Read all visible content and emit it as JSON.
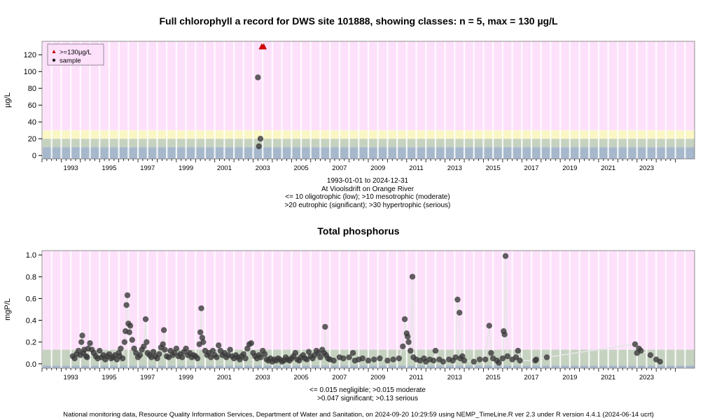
{
  "chart_data": [
    {
      "type": "scatter",
      "title": "Full chlorophyll a record for DWS site 101888, showing classes: n = 5, max = 130 µg/L",
      "ylabel": "µg/L",
      "xlabel": "",
      "xlim": [
        1992.0,
        2026.0
      ],
      "ylim": [
        -4,
        136
      ],
      "yticks": [
        "0",
        "20",
        "40",
        "60",
        "80",
        "100",
        "120"
      ],
      "xticks": [
        "1993",
        "1995",
        "1997",
        "1999",
        "2001",
        "2003",
        "2005",
        "2007",
        "2009",
        "2011",
        "2013",
        "2015",
        "2017",
        "2019",
        "2021",
        "2023"
      ],
      "notes": [
        "1993-01-01 to 2024-12-31",
        "At Vioolsdrift on Orange River",
        "<= 10 oligotrophic (low); >10 mesotrophic (moderate)",
        ">20 eutrophic (significant); >30 hypertrophic (serious)"
      ],
      "classes": [
        {
          "from": -4,
          "to": 10,
          "color": "#a7b8cc"
        },
        {
          "from": 10,
          "to": 20,
          "color": "#c5d2c0"
        },
        {
          "from": 20,
          "to": 30,
          "color": "#fbf7c5"
        },
        {
          "from": 30,
          "to": 136,
          "color": "#fde1fb"
        }
      ],
      "legend": {
        "position": "top-left",
        "items": [
          {
            "label": ">=130µg/L",
            "marker": "triangle",
            "color": "#cc0000"
          },
          {
            "label": "sample",
            "marker": "dot",
            "color": "#222222"
          }
        ]
      },
      "series": [
        {
          "name": "sample",
          "points": [
            [
              2003.25,
              93
            ],
            [
              2003.3,
              11
            ],
            [
              2003.38,
              20
            ]
          ]
        },
        {
          "name": ">=130µg/L",
          "points": [
            [
              2003.45,
              130
            ],
            [
              2003.55,
              130
            ]
          ]
        }
      ]
    },
    {
      "type": "scatter",
      "title": "Total phosphorus",
      "ylabel": "mgP/L",
      "xlabel": "",
      "xlim": [
        1992.0,
        2026.0
      ],
      "ylim": [
        -0.04,
        1.04
      ],
      "yticks": [
        "0.0",
        "0.2",
        "0.4",
        "0.6",
        "0.8",
        "1.0"
      ],
      "xticks": [
        "1993",
        "1995",
        "1997",
        "1999",
        "2001",
        "2003",
        "2005",
        "2007",
        "2009",
        "2011",
        "2013",
        "2015",
        "2017",
        "2019",
        "2021",
        "2023"
      ],
      "notes": [
        "<= 0.015 negligible; >0.015 moderate",
        ">0.047 significant; >0.13 serious"
      ],
      "classes": [
        {
          "from": -0.04,
          "to": -0.015,
          "color": "#a7b8cc"
        },
        {
          "from": -0.015,
          "to": 0.13,
          "color": "#c5d2c0"
        },
        {
          "from": 0.13,
          "to": 1.04,
          "color": "#fde1fb"
        }
      ],
      "series": [
        {
          "name": "sample",
          "points": [
            [
              1993.6,
              0.07
            ],
            [
              1993.7,
              0.05
            ],
            [
              1993.8,
              0.09
            ],
            [
              1993.9,
              0.12
            ],
            [
              1994.0,
              0.08
            ],
            [
              1994.05,
              0.2
            ],
            [
              1994.1,
              0.26
            ],
            [
              1994.15,
              0.1
            ],
            [
              1994.2,
              0.13
            ],
            [
              1994.3,
              0.07
            ],
            [
              1994.35,
              0.06
            ],
            [
              1994.4,
              0.14
            ],
            [
              1994.5,
              0.19
            ],
            [
              1994.6,
              0.13
            ],
            [
              1994.7,
              0.1
            ],
            [
              1994.8,
              0.07
            ],
            [
              1994.9,
              0.05
            ],
            [
              1995.0,
              0.12
            ],
            [
              1995.1,
              0.06
            ],
            [
              1995.2,
              0.08
            ],
            [
              1995.3,
              0.04
            ],
            [
              1995.4,
              0.07
            ],
            [
              1995.5,
              0.09
            ],
            [
              1995.6,
              0.05
            ],
            [
              1995.7,
              0.06
            ],
            [
              1995.8,
              0.08
            ],
            [
              1995.9,
              0.04
            ],
            [
              1996.0,
              0.1
            ],
            [
              1996.05,
              0.07
            ],
            [
              1996.1,
              0.14
            ],
            [
              1996.2,
              0.05
            ],
            [
              1996.3,
              0.2
            ],
            [
              1996.35,
              0.3
            ],
            [
              1996.4,
              0.54
            ],
            [
              1996.45,
              0.63
            ],
            [
              1996.5,
              0.37
            ],
            [
              1996.55,
              0.29
            ],
            [
              1996.6,
              0.35
            ],
            [
              1996.7,
              0.22
            ],
            [
              1996.8,
              0.14
            ],
            [
              1996.9,
              0.1
            ],
            [
              1997.0,
              0.06
            ],
            [
              1997.1,
              0.08
            ],
            [
              1997.2,
              0.13
            ],
            [
              1997.3,
              0.16
            ],
            [
              1997.4,
              0.41
            ],
            [
              1997.45,
              0.2
            ],
            [
              1997.5,
              0.1
            ],
            [
              1997.6,
              0.08
            ],
            [
              1997.7,
              0.06
            ],
            [
              1997.8,
              0.11
            ],
            [
              1997.9,
              0.07
            ],
            [
              1998.0,
              0.05
            ],
            [
              1998.1,
              0.09
            ],
            [
              1998.2,
              0.15
            ],
            [
              1998.3,
              0.18
            ],
            [
              1998.35,
              0.31
            ],
            [
              1998.4,
              0.13
            ],
            [
              1998.5,
              0.07
            ],
            [
              1998.6,
              0.06
            ],
            [
              1998.7,
              0.12
            ],
            [
              1998.8,
              0.08
            ],
            [
              1998.9,
              0.1
            ],
            [
              1999.0,
              0.14
            ],
            [
              1999.1,
              0.07
            ],
            [
              1999.2,
              0.09
            ],
            [
              1999.3,
              0.06
            ],
            [
              1999.4,
              0.11
            ],
            [
              1999.5,
              0.14
            ],
            [
              1999.6,
              0.08
            ],
            [
              1999.7,
              0.1
            ],
            [
              1999.8,
              0.06
            ],
            [
              1999.9,
              0.08
            ],
            [
              2000.0,
              0.07
            ],
            [
              2000.1,
              0.05
            ],
            [
              2000.2,
              0.18
            ],
            [
              2000.25,
              0.29
            ],
            [
              2000.3,
              0.51
            ],
            [
              2000.35,
              0.24
            ],
            [
              2000.4,
              0.2
            ],
            [
              2000.5,
              0.12
            ],
            [
              2000.6,
              0.08
            ],
            [
              2000.7,
              0.1
            ],
            [
              2000.8,
              0.06
            ],
            [
              2000.9,
              0.12
            ],
            [
              2001.0,
              0.08
            ],
            [
              2001.1,
              0.06
            ],
            [
              2001.2,
              0.17
            ],
            [
              2001.3,
              0.12
            ],
            [
              2001.4,
              0.08
            ],
            [
              2001.5,
              0.1
            ],
            [
              2001.6,
              0.06
            ],
            [
              2001.7,
              0.08
            ],
            [
              2001.8,
              0.13
            ],
            [
              2001.9,
              0.07
            ],
            [
              2002.0,
              0.05
            ],
            [
              2002.1,
              0.08
            ],
            [
              2002.2,
              0.06
            ],
            [
              2002.3,
              0.04
            ],
            [
              2002.4,
              0.07
            ],
            [
              2002.5,
              0.09
            ],
            [
              2002.6,
              0.05
            ],
            [
              2002.7,
              0.14
            ],
            [
              2002.8,
              0.18
            ],
            [
              2002.9,
              0.19
            ],
            [
              2003.0,
              0.1
            ],
            [
              2003.1,
              0.07
            ],
            [
              2003.2,
              0.05
            ],
            [
              2003.3,
              0.08
            ],
            [
              2003.4,
              0.06
            ],
            [
              2003.5,
              0.12
            ],
            [
              2003.6,
              0.09
            ],
            [
              2003.7,
              0.04
            ],
            [
              2003.8,
              0.03
            ],
            [
              2003.9,
              0.05
            ],
            [
              2004.0,
              0.02
            ],
            [
              2004.1,
              0.04
            ],
            [
              2004.2,
              0.03
            ],
            [
              2004.3,
              0.05
            ],
            [
              2004.4,
              0.04
            ],
            [
              2004.5,
              0.02
            ],
            [
              2004.6,
              0.03
            ],
            [
              2004.7,
              0.06
            ],
            [
              2004.8,
              0.04
            ],
            [
              2004.9,
              0.03
            ],
            [
              2005.0,
              0.05
            ],
            [
              2005.1,
              0.07
            ],
            [
              2005.2,
              0.1
            ],
            [
              2005.3,
              0.04
            ],
            [
              2005.4,
              0.03
            ],
            [
              2005.5,
              0.06
            ],
            [
              2005.6,
              0.08
            ],
            [
              2005.7,
              0.05
            ],
            [
              2005.8,
              0.04
            ],
            [
              2005.9,
              0.11
            ],
            [
              2006.0,
              0.07
            ],
            [
              2006.1,
              0.05
            ],
            [
              2006.2,
              0.08
            ],
            [
              2006.3,
              0.12
            ],
            [
              2006.4,
              0.1
            ],
            [
              2006.5,
              0.06
            ],
            [
              2006.6,
              0.13
            ],
            [
              2006.7,
              0.1
            ],
            [
              2006.75,
              0.34
            ],
            [
              2006.8,
              0.08
            ],
            [
              2006.9,
              0.05
            ],
            [
              2007.0,
              0.04
            ],
            [
              2007.2,
              0.03
            ],
            [
              2007.5,
              0.06
            ],
            [
              2007.7,
              0.05
            ],
            [
              2008.0,
              0.06
            ],
            [
              2008.2,
              0.1
            ],
            [
              2008.3,
              0.03
            ],
            [
              2008.5,
              0.04
            ],
            [
              2008.7,
              0.05
            ],
            [
              2009.0,
              0.03
            ],
            [
              2009.3,
              0.04
            ],
            [
              2009.6,
              0.05
            ],
            [
              2010.0,
              0.03
            ],
            [
              2010.3,
              0.04
            ],
            [
              2010.6,
              0.05
            ],
            [
              2010.8,
              0.16
            ],
            [
              2010.9,
              0.41
            ],
            [
              2011.0,
              0.28
            ],
            [
              2011.05,
              0.25
            ],
            [
              2011.1,
              0.2
            ],
            [
              2011.2,
              0.12
            ],
            [
              2011.3,
              0.8
            ],
            [
              2011.35,
              0.06
            ],
            [
              2011.5,
              0.04
            ],
            [
              2011.7,
              0.03
            ],
            [
              2011.9,
              0.05
            ],
            [
              2012.0,
              0.02
            ],
            [
              2012.2,
              0.04
            ],
            [
              2012.4,
              0.03
            ],
            [
              2012.5,
              0.12
            ],
            [
              2012.7,
              0.04
            ],
            [
              2012.9,
              0.02
            ],
            [
              2013.2,
              0.04
            ],
            [
              2013.4,
              0.03
            ],
            [
              2013.55,
              0.06
            ],
            [
              2013.65,
              0.59
            ],
            [
              2013.75,
              0.47
            ],
            [
              2013.8,
              0.05
            ],
            [
              2013.9,
              0.07
            ],
            [
              2014.0,
              0.03
            ],
            [
              2014.5,
              0.02
            ],
            [
              2014.8,
              0.04
            ],
            [
              2015.1,
              0.04
            ],
            [
              2015.3,
              0.35
            ],
            [
              2015.4,
              0.1
            ],
            [
              2015.5,
              0.05
            ],
            [
              2015.7,
              0.03
            ],
            [
              2015.8,
              0.01
            ],
            [
              2016.0,
              0.05
            ],
            [
              2016.05,
              0.3
            ],
            [
              2016.1,
              0.27
            ],
            [
              2016.15,
              0.99
            ],
            [
              2016.25,
              0.07
            ],
            [
              2016.5,
              0.04
            ],
            [
              2016.7,
              0.06
            ],
            [
              2016.8,
              0.12
            ],
            [
              2016.9,
              0.03
            ],
            [
              2017.7,
              0.03
            ],
            [
              2017.75,
              0.04
            ],
            [
              2018.3,
              0.06
            ],
            [
              2022.9,
              0.18
            ],
            [
              2023.0,
              0.1
            ],
            [
              2023.1,
              0.14
            ],
            [
              2023.2,
              0.12
            ],
            [
              2023.7,
              0.08
            ],
            [
              2024.0,
              0.04
            ],
            [
              2024.2,
              0.02
            ]
          ]
        }
      ]
    }
  ],
  "footer": "National monitoring data, Resource Quality Information Services, Department of Water and Sanitation, on 2024-09-20 10:29:59 using NEMP_TimeLine.R ver 2.3 under R version 4.4.1 (2024-06-14 ucrt)"
}
